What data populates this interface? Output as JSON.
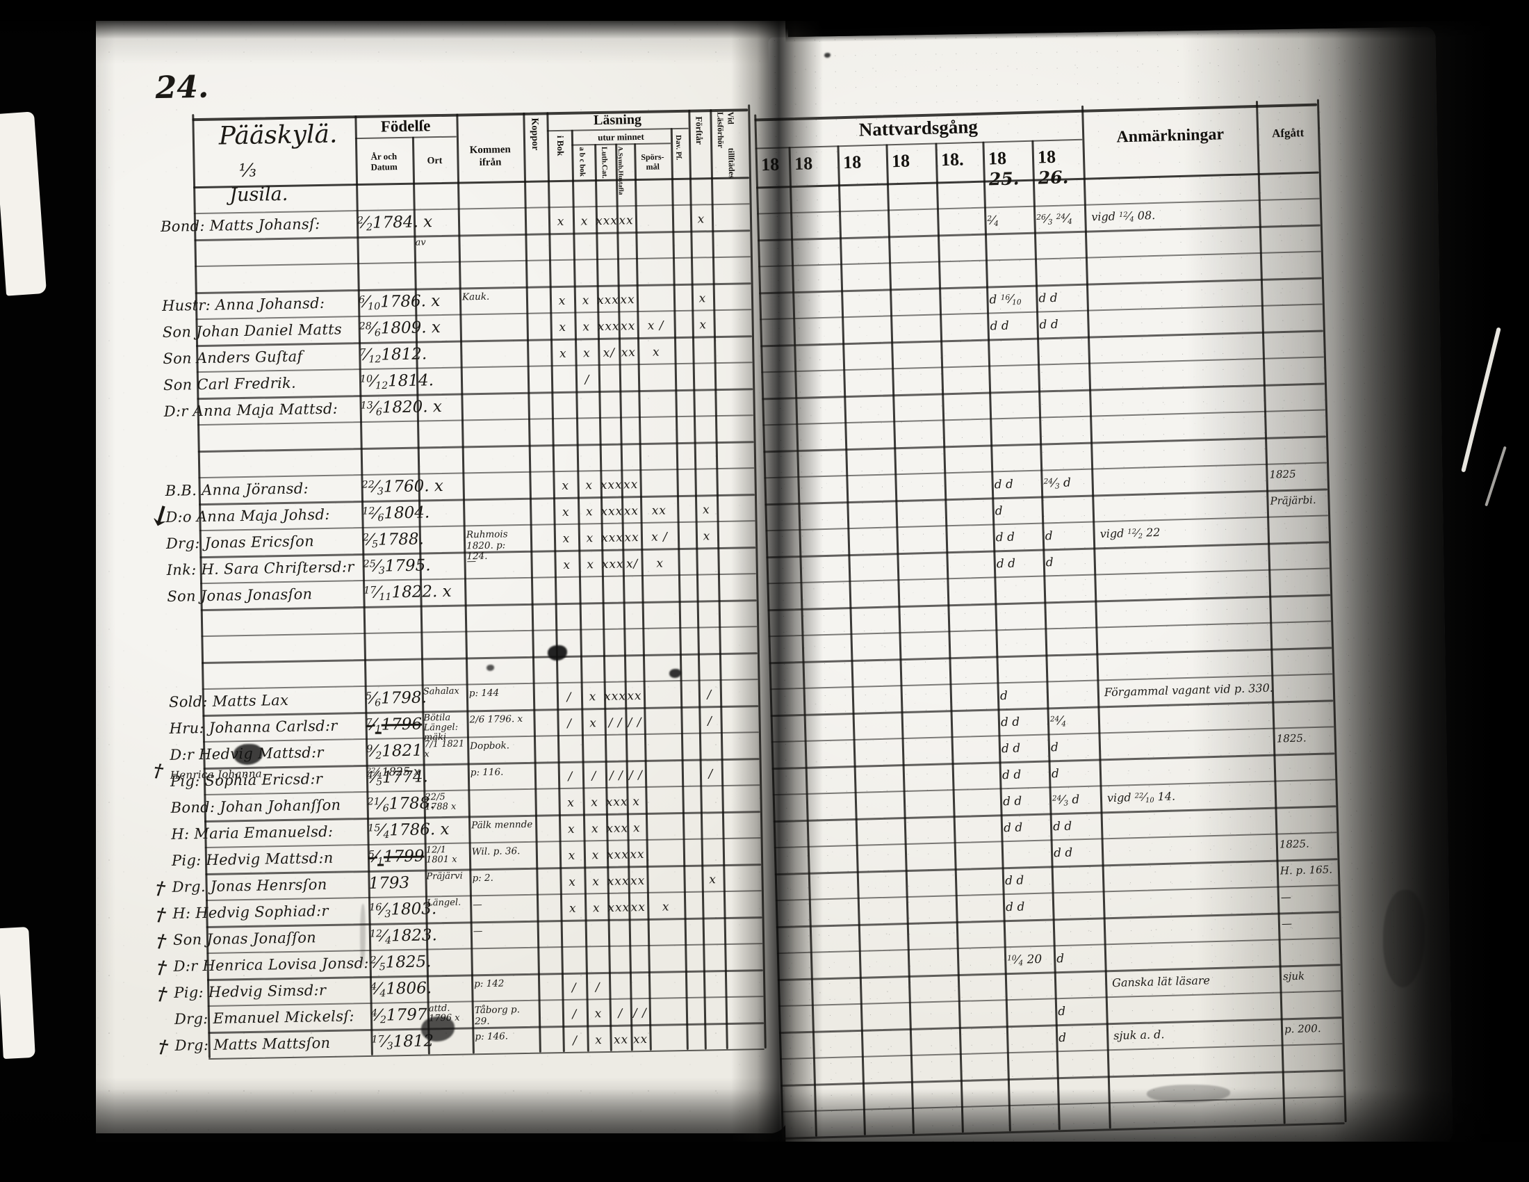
{
  "page_number": "24.",
  "village": {
    "line1": "Pääskylä.",
    "fraction": "⅓",
    "line2": "Jusila."
  },
  "left_table": {
    "fodelse": "Födelſe",
    "ar_och_datum": "År och Datum",
    "ort": "Ort",
    "kommen_line1": "Kommen",
    "kommen_line2": "ifrån",
    "koppor": "Koppor",
    "lasning": "Läsning",
    "i_bok": "i Bok",
    "utur_minnet": "utur minnet",
    "abc_bok": "a b c bok",
    "luth_cat": "Luth.Cat.",
    "symb_line1": "A.Symb,",
    "symb_line2": "Hustafla",
    "sporsmal_line1": "Spörs-",
    "sporsmal_line2": "mål",
    "dav_ps": "Dav. Pſ.",
    "forstar": "Förſtår",
    "vid_lasforhor_line1": "Vid Läsförhör",
    "vid_lasforhor_line2": "tillſtädes"
  },
  "right_table": {
    "nattvardsgang": "Nattvardsgång",
    "years": [
      {
        "p": "18",
        "w": ""
      },
      {
        "p": "18",
        "w": ""
      },
      {
        "p": "18",
        "w": ""
      },
      {
        "p": "18",
        "w": ""
      },
      {
        "p": "18.",
        "w": ""
      },
      {
        "p": "18",
        "w": "25."
      },
      {
        "p": "18",
        "w": "26."
      }
    ],
    "anmarkningar": "Anmärkningar",
    "afgatt": "Afgått"
  },
  "rows": [
    {
      "row": 1,
      "name": "Bond: Matts Johansſ:",
      "date": "2/2",
      "year": "1784. x",
      "lasning": [
        "x",
        "x",
        "xxx",
        "xx",
        "",
        "",
        "x"
      ],
      "natt": [
        "2/4",
        "26/3 24/4"
      ],
      "anm": "vigd 12/4 08."
    },
    {
      "row": 2,
      "ort": "av"
    },
    {
      "row": 4,
      "name": "Hustr: Anna Johansd:",
      "date": "6/10",
      "year": "1786. x",
      "kommen": "Kauk.",
      "lasning": [
        "x",
        "x",
        "xxx",
        "xx",
        "",
        "",
        "x"
      ],
      "natt": [
        "d 16/10",
        "d  d"
      ]
    },
    {
      "row": 5,
      "name": "Son Johan Daniel Matts",
      "date": "28/6",
      "year": "1809. x",
      "lasning": [
        "x",
        "x",
        "xxx",
        "xx",
        "x /",
        "",
        "x"
      ],
      "natt": [
        "d  d",
        "d  d"
      ]
    },
    {
      "row": 6,
      "name": "Son Anders Guſtaf",
      "date": "7/12",
      "year": "1812.",
      "lasning": [
        "x",
        "x",
        "x/",
        "xx",
        "x",
        "",
        ""
      ]
    },
    {
      "row": 7,
      "name": "Son Carl Fredrik.",
      "date": "10/12",
      "year": "1814.",
      "lasning": [
        "",
        "/",
        "",
        "",
        "",
        "",
        ""
      ]
    },
    {
      "row": 8,
      "name": "D:r Anna Maja Mattsd:",
      "date": "13/6",
      "year": "1820. x"
    },
    {
      "row": 11,
      "name": "B.B. Anna Jöransd:",
      "date": "22/3",
      "year": "1760. x",
      "lasning": [
        "x",
        "x",
        "xxx",
        "xx",
        "",
        "",
        ""
      ],
      "natt": [
        "d  d",
        "24/3 d"
      ],
      "afgatt": "1825"
    },
    {
      "row": 12,
      "margin": "↓",
      "name": "D:o Anna Maja Johsd:",
      "date": "12/6",
      "year": "1804.",
      "lasning": [
        "x",
        "x",
        "xxx",
        "xx",
        "xx",
        "",
        "x"
      ],
      "natt": [
        "d",
        ""
      ],
      "afgatt": "Präjärbi."
    },
    {
      "row": 13,
      "name": "Drg: Jonas Ericsſon",
      "date": "2/5",
      "year": "1788.",
      "kommen": "Ruhmois 1820. p: 124.",
      "lasning": [
        "x",
        "x",
        "xxx",
        "xx",
        "x /",
        "",
        "x"
      ],
      "natt": [
        "d  d",
        "d"
      ],
      "anm": "vigd 12/2 22"
    },
    {
      "row": 14,
      "name": "Ink: H. Sara Chriſtersd:r",
      "date": "25/3",
      "year": "1795.",
      "kommen": "—",
      "lasning": [
        "x",
        "x",
        "xxx",
        "x/",
        "x",
        "",
        ""
      ],
      "natt": [
        "d  d",
        "d"
      ]
    },
    {
      "row": 15,
      "name": "Son Jonas Jonasſon",
      "date": "17/11",
      "year": "1822. x"
    },
    {
      "row": 19,
      "name": "Sold: Matts Lax",
      "date": "5/6",
      "year": "1798.",
      "ort": "Sahalax",
      "kommen": "p: 144",
      "lasning": [
        "/",
        "x",
        "xxx",
        "xx",
        "",
        "",
        "/"
      ],
      "natt": [
        "d",
        ""
      ],
      "anm": "Förgammal vagant vid p. 330."
    },
    {
      "row": 20,
      "name": "Hru: Johanna Carlsd:r",
      "date": "7/1",
      "year": "1796",
      "year_struck": true,
      "ort": "Bötila Längel: mäki",
      "kommen": "2/6 1796. x",
      "lasning": [
        "/",
        "x",
        "/ /",
        "/ /",
        "",
        "",
        "/"
      ],
      "natt": [
        "d  d",
        "24/4"
      ]
    },
    {
      "row": 21,
      "name": "D:r Hedvig Mattsd:r",
      "date": "9/2",
      "year": "1821",
      "ort": "7/1 1821 x",
      "kommen": "Dopbok.",
      "natt": [
        "d  d",
        "d"
      ],
      "afgatt": "1825."
    },
    {
      "row": 21.55,
      "small": true,
      "margin": "†",
      "name": "Henrica Johanna",
      "date": "22/4",
      "year": "1825 x"
    },
    {
      "row": 22,
      "name": "Pig: Sophia Ericsd:r",
      "date": "4/5",
      "year": "1774.",
      "kommen": "p: 116.",
      "lasning": [
        "/",
        "/",
        "/ /",
        "/ /",
        "",
        "",
        "/"
      ],
      "natt": [
        "d  d",
        "d"
      ]
    },
    {
      "row": 23,
      "name": "Bond: Johan Johanſſon",
      "date": "21/6",
      "year": "1788.",
      "ort": "22/5 1788 x",
      "lasning": [
        "x",
        "x",
        "xxx",
        "x",
        "",
        "",
        ""
      ],
      "natt": [
        "d  d",
        "24/3 d"
      ],
      "anm": "vigd 22/10 14."
    },
    {
      "row": 24,
      "name": "H: Maria Emanuelsd:",
      "date": "15/4",
      "year": "1786. x",
      "kommen": "Pälk mennde",
      "lasning": [
        "x",
        "x",
        "xxx",
        "x",
        "",
        "",
        ""
      ],
      "natt": [
        "d  d",
        "d  d"
      ]
    },
    {
      "row": 25,
      "name": "Pig: Hedvig Mattsd:n",
      "date": "5/1",
      "year": "1799",
      "year_struck": true,
      "ort": "12/1 1801 x",
      "kommen": "Wil. p. 36.",
      "lasning": [
        "x",
        "x",
        "xxx",
        "xx",
        "",
        "",
        ""
      ],
      "natt": [
        "",
        "d  d"
      ],
      "afgatt": "1825."
    },
    {
      "row": 26,
      "margin": "†",
      "name": "Drg. Jonas Henrsſon",
      "date": "",
      "year": "1793",
      "ort": "Präjärvi",
      "kommen": "p: 2.",
      "lasning": [
        "x",
        "x",
        "xxx",
        "xx",
        "",
        "",
        "x"
      ],
      "natt": [
        "d  d",
        ""
      ],
      "afgatt": "H. p. 165."
    },
    {
      "row": 27,
      "margin": "†",
      "name": "H: Hedvig Sophiad:r",
      "date": "16/3",
      "year": "1803.",
      "ort": "Längel.",
      "kommen": "—",
      "lasning": [
        "x",
        "x",
        "xxx",
        "xx",
        "x",
        "",
        ""
      ],
      "natt": [
        "d  d",
        ""
      ],
      "afgatt": "—"
    },
    {
      "row": 28,
      "margin": "†",
      "name": "Son Jonas Jonaſſon",
      "date": "12/4",
      "year": "1823.",
      "kommen": "—",
      "afgatt": "—"
    },
    {
      "row": 29,
      "margin": "†",
      "name": "D:r Henrica Lovisa Jonsd:",
      "date": "2/5",
      "year": "1825.",
      "natt": [
        "10/4 20",
        "d"
      ]
    },
    {
      "row": 30,
      "margin": "†",
      "name": "Pig: Hedvig Simsd:r",
      "date": "4/4",
      "year": "1806.",
      "kommen": "p: 142",
      "lasning": [
        "/",
        "/",
        "",
        "",
        "",
        "",
        ""
      ],
      "anm": "Ganska lät läsare",
      "afgatt": "sjuk"
    },
    {
      "row": 31,
      "name": "Drg: Emanuel Mickelsſ:",
      "date": "4/2",
      "year": "1797",
      "ort": "attd. 1796 x",
      "kommen": "Tåborg p. 29.",
      "lasning": [
        "/",
        "x",
        "/",
        "/ /",
        "",
        "",
        ""
      ],
      "natt": [
        "",
        "d"
      ]
    },
    {
      "row": 32,
      "margin": "†",
      "name": "Drg: Matts Mattsſon",
      "date": "17/3",
      "year": "1812",
      "kommen": "p: 146.",
      "lasning": [
        "/",
        "x",
        "xx",
        "xx",
        "",
        "",
        ""
      ],
      "natt": [
        "",
        "d"
      ],
      "anm": "sjuk a. d.",
      "afgatt": "p. 200."
    }
  ]
}
